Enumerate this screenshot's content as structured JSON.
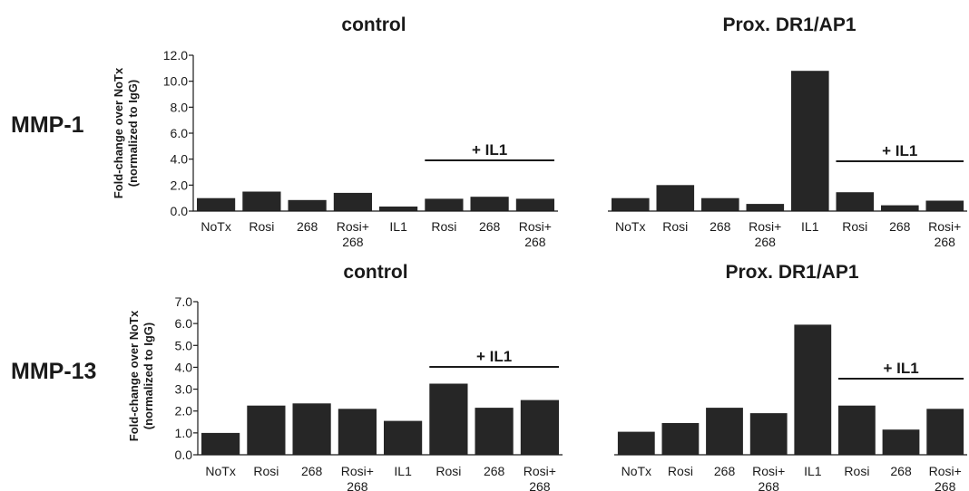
{
  "row_labels": [
    "MMP-1",
    "MMP-13"
  ],
  "ylabel_line1": "Fold-change over NoTx",
  "ylabel_line2": "(normalized to IgG)",
  "group_label": "+ IL1",
  "colors": {
    "bar": "#262626",
    "axis": "#1a1a1a"
  },
  "chart_data": [
    {
      "type": "bar",
      "row": "MMP-1",
      "title": "control",
      "categories": [
        "NoTx",
        "Rosi",
        "268",
        "Rosi+\n268",
        "IL1",
        "Rosi",
        "268",
        "Rosi+\n268"
      ],
      "values": [
        1.0,
        1.5,
        0.85,
        1.4,
        0.35,
        0.95,
        1.1,
        0.95
      ],
      "ylim": [
        0,
        12
      ],
      "yticks": [
        "0.0",
        "2.0",
        "4.0",
        "6.0",
        "8.0",
        "10.0",
        "12.0"
      ],
      "group_bracket": {
        "label": "+ IL1",
        "categories": [
          5,
          7
        ]
      }
    },
    {
      "type": "bar",
      "row": "MMP-1",
      "title": "Prox. DR1/AP1",
      "categories": [
        "NoTx",
        "Rosi",
        "268",
        "Rosi+\n268",
        "IL1",
        "Rosi",
        "268",
        "Rosi+\n268"
      ],
      "values": [
        1.0,
        2.0,
        1.0,
        0.55,
        10.8,
        1.45,
        0.45,
        0.8
      ],
      "ylim": [
        0,
        12
      ],
      "group_bracket": {
        "label": "+ IL1",
        "categories": [
          5,
          7
        ]
      }
    },
    {
      "type": "bar",
      "row": "MMP-13",
      "title": "control",
      "categories": [
        "NoTx",
        "Rosi",
        "268",
        "Rosi+\n268",
        "IL1",
        "Rosi",
        "268",
        "Rosi+\n268"
      ],
      "values": [
        1.0,
        2.25,
        2.35,
        2.1,
        1.55,
        3.25,
        2.15,
        2.5
      ],
      "ylim": [
        0,
        7
      ],
      "yticks": [
        "0.0",
        "1.0",
        "2.0",
        "3.0",
        "4.0",
        "5.0",
        "6.0",
        "7.0"
      ],
      "group_bracket": {
        "label": "+ IL1",
        "categories": [
          5,
          7
        ]
      }
    },
    {
      "type": "bar",
      "row": "MMP-13",
      "title": "Prox. DR1/AP1",
      "categories": [
        "NoTx",
        "Rosi",
        "268",
        "Rosi+\n268",
        "IL1",
        "Rosi",
        "268",
        "Rosi+\n268"
      ],
      "values": [
        1.05,
        1.45,
        2.15,
        1.9,
        5.95,
        2.25,
        1.15,
        2.1
      ],
      "ylim": [
        0,
        7
      ],
      "group_bracket": {
        "label": "+ IL1",
        "categories": [
          5,
          7
        ]
      }
    }
  ]
}
